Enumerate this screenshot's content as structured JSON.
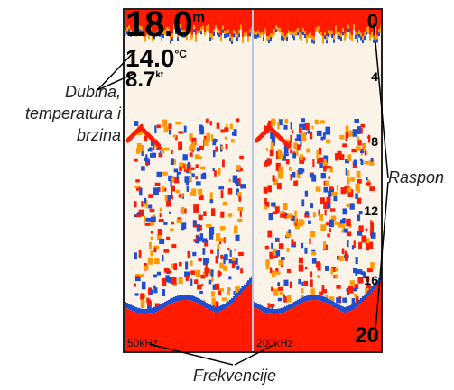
{
  "sonar": {
    "depth": "18.0",
    "depth_unit": "m",
    "temperature": "14.0",
    "temperature_unit": "°C",
    "speed": "8.7",
    "speed_unit": "kt",
    "scale_labels": [
      "0",
      "4",
      "8",
      "12",
      "16",
      "20"
    ],
    "left_frequency": "50kHz",
    "right_frequency": "200kHz"
  },
  "callouts": {
    "left": [
      "Dubina,",
      "temperatura i",
      "brzina"
    ],
    "right": "Raspon",
    "bottom": "Frekvencije"
  },
  "colors": {
    "background": "#fbf3e8",
    "strong_return": "#ff1a00",
    "mid_return": "#ff9a00",
    "weak_return": "#1f4fd0"
  }
}
